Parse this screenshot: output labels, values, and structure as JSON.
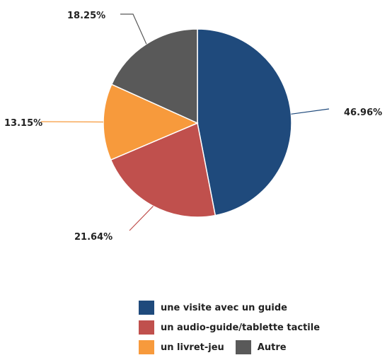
{
  "chart_data": {
    "type": "pie",
    "categories": [
      "une visite avec un guide",
      "un audio-guide/tablette tactile",
      "un livret-jeu",
      "Autre"
    ],
    "values": [
      46.96,
      21.64,
      13.15,
      18.25
    ],
    "value_labels": [
      "46.96%",
      "21.64%",
      "13.15%",
      "18.25%"
    ],
    "colors": [
      "#1f4a7c",
      "#c0504d",
      "#f79a3c",
      "#595959"
    ],
    "legend_placement": "bottom-right",
    "start_angle": "top, clockwise"
  }
}
